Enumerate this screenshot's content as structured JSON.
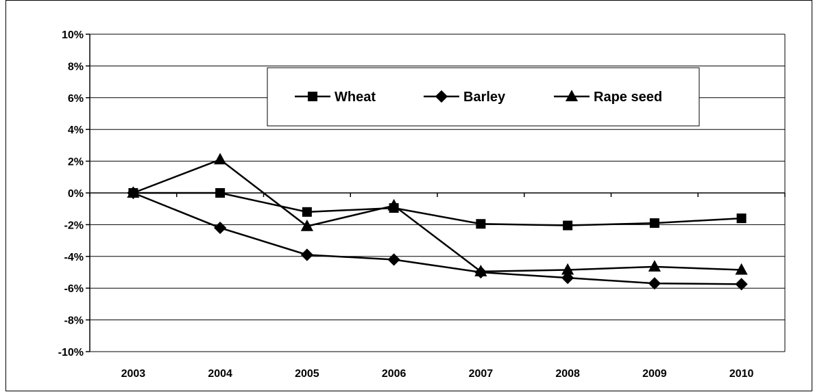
{
  "chart_data": {
    "type": "line",
    "title": "",
    "xlabel": "",
    "ylabel": "",
    "categories": [
      "2003",
      "2004",
      "2005",
      "2006",
      "2007",
      "2008",
      "2009",
      "2010"
    ],
    "ylim": [
      -10,
      10
    ],
    "yticks": [
      10,
      8,
      6,
      4,
      2,
      0,
      -2,
      -4,
      -6,
      -8,
      -10
    ],
    "ytick_labels": [
      "10%",
      "8%",
      "6%",
      "4%",
      "2%",
      "0%",
      "-2%",
      "-4%",
      "-6%",
      "-8%",
      "-10%"
    ],
    "grid": true,
    "legend_position": "top-center",
    "series": [
      {
        "name": "Wheat",
        "marker": "square",
        "values": [
          0,
          0,
          -1.2,
          -0.95,
          -1.95,
          -2.05,
          -1.9,
          -1.6
        ]
      },
      {
        "name": "Barley",
        "marker": "diamond",
        "values": [
          0,
          -2.2,
          -3.9,
          -4.2,
          -5.0,
          -5.35,
          -5.7,
          -5.75
        ]
      },
      {
        "name": "Rape seed",
        "marker": "triangle",
        "values": [
          0,
          2.1,
          -2.1,
          -0.8,
          -4.95,
          -4.85,
          -4.65,
          -4.85
        ]
      }
    ],
    "line_color": "#000000"
  }
}
